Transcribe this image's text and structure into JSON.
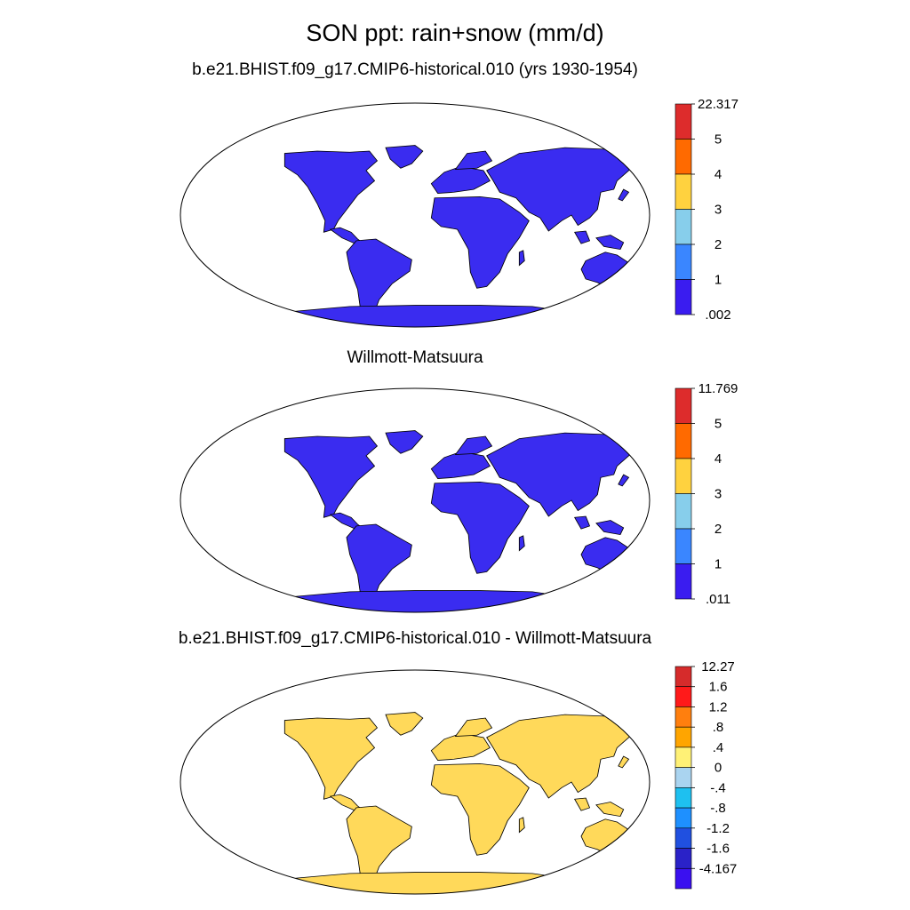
{
  "title": "SON ppt: rain+snow (mm/d)",
  "panels": [
    {
      "title": "b.e21.BHIST.f09_g17.CMIP6-historical.010 (yrs 1930-1954)",
      "colorbar": {
        "labels": [
          "22.317",
          "5",
          "4",
          "3",
          "2",
          "1",
          ".002"
        ],
        "colors": [
          "#dd2c2c",
          "#ff6a00",
          "#ffd23f",
          "#87ceeb",
          "#3a86ff",
          "#3a1cf0"
        ]
      }
    },
    {
      "title": "Willmott-Matsuura",
      "colorbar": {
        "labels": [
          "11.769",
          "5",
          "4",
          "3",
          "2",
          "1",
          ".011"
        ],
        "colors": [
          "#dd2c2c",
          "#ff6a00",
          "#ffd23f",
          "#87ceeb",
          "#3a86ff",
          "#3a1cf0"
        ]
      }
    },
    {
      "title": "b.e21.BHIST.f09_g17.CMIP6-historical.010 - Willmott-Matsuura",
      "colorbar": {
        "labels": [
          "12.27",
          "1.6",
          "1.2",
          ".8",
          ".4",
          "0",
          "-.4",
          "-.8",
          "-1.2",
          "-1.6",
          "-4.167"
        ],
        "colors": [
          "#d62b2b",
          "#ff1a1a",
          "#ff7f0e",
          "#ffa500",
          "#fff176",
          "#aad4f0",
          "#1ec0f0",
          "#1e90ff",
          "#2050e0",
          "#2a22c8",
          "#3a10f0"
        ]
      }
    }
  ]
}
